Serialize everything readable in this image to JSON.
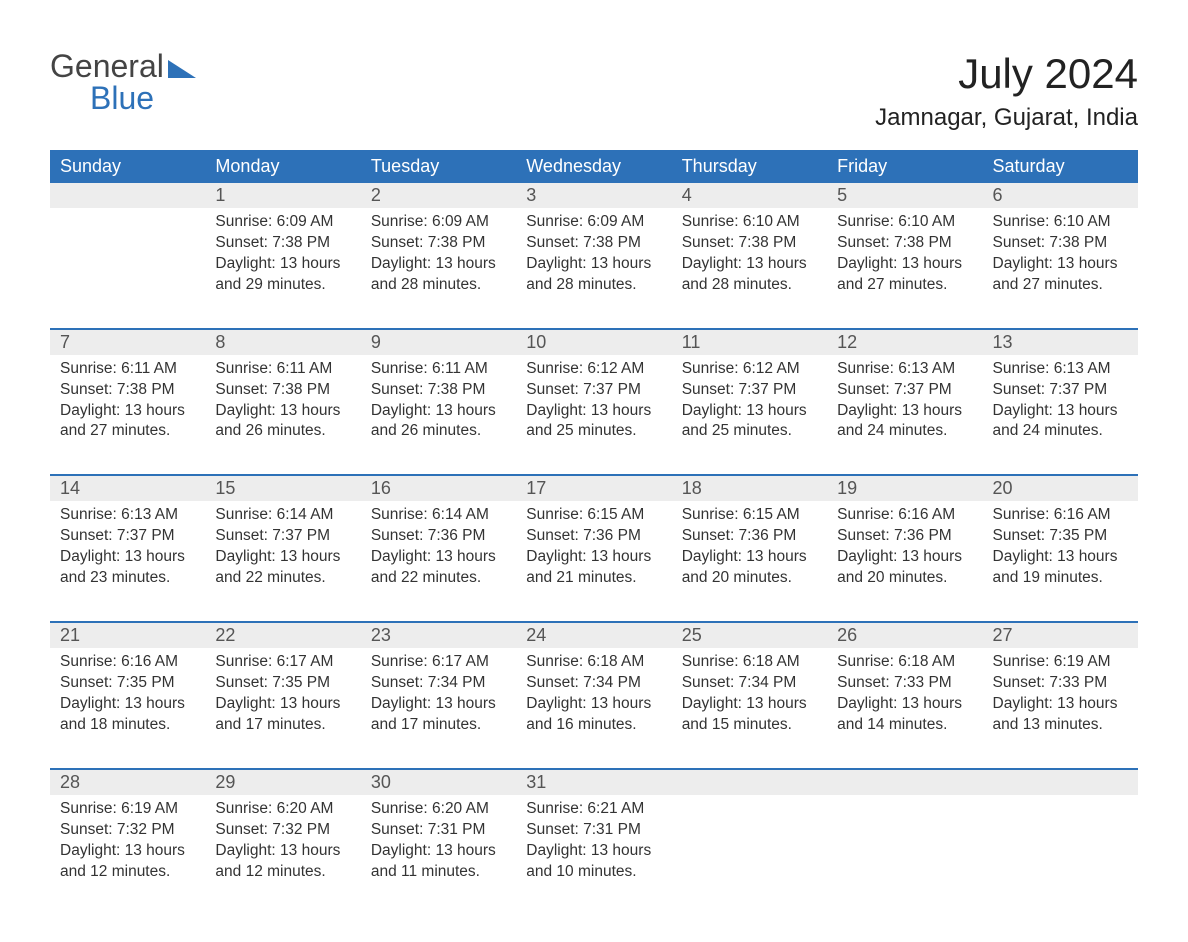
{
  "logo": {
    "line1": "General",
    "line2": "Blue",
    "accent_color": "#2d71b8"
  },
  "title": "July 2024",
  "location": "Jamnagar, Gujarat, India",
  "colors": {
    "header_bg": "#2d71b8",
    "header_text": "#ffffff",
    "daynum_bg": "#ededed",
    "body_text": "#333333",
    "background": "#ffffff"
  },
  "typography": {
    "title_fontsize": 42,
    "location_fontsize": 24,
    "header_fontsize": 18,
    "cell_fontsize": 15.5
  },
  "day_headers": [
    "Sunday",
    "Monday",
    "Tuesday",
    "Wednesday",
    "Thursday",
    "Friday",
    "Saturday"
  ],
  "weeks": [
    [
      {
        "n": "",
        "sr": "",
        "ss": "",
        "dl": ""
      },
      {
        "n": "1",
        "sr": "6:09 AM",
        "ss": "7:38 PM",
        "dl": "13 hours and 29 minutes."
      },
      {
        "n": "2",
        "sr": "6:09 AM",
        "ss": "7:38 PM",
        "dl": "13 hours and 28 minutes."
      },
      {
        "n": "3",
        "sr": "6:09 AM",
        "ss": "7:38 PM",
        "dl": "13 hours and 28 minutes."
      },
      {
        "n": "4",
        "sr": "6:10 AM",
        "ss": "7:38 PM",
        "dl": "13 hours and 28 minutes."
      },
      {
        "n": "5",
        "sr": "6:10 AM",
        "ss": "7:38 PM",
        "dl": "13 hours and 27 minutes."
      },
      {
        "n": "6",
        "sr": "6:10 AM",
        "ss": "7:38 PM",
        "dl": "13 hours and 27 minutes."
      }
    ],
    [
      {
        "n": "7",
        "sr": "6:11 AM",
        "ss": "7:38 PM",
        "dl": "13 hours and 27 minutes."
      },
      {
        "n": "8",
        "sr": "6:11 AM",
        "ss": "7:38 PM",
        "dl": "13 hours and 26 minutes."
      },
      {
        "n": "9",
        "sr": "6:11 AM",
        "ss": "7:38 PM",
        "dl": "13 hours and 26 minutes."
      },
      {
        "n": "10",
        "sr": "6:12 AM",
        "ss": "7:37 PM",
        "dl": "13 hours and 25 minutes."
      },
      {
        "n": "11",
        "sr": "6:12 AM",
        "ss": "7:37 PM",
        "dl": "13 hours and 25 minutes."
      },
      {
        "n": "12",
        "sr": "6:13 AM",
        "ss": "7:37 PM",
        "dl": "13 hours and 24 minutes."
      },
      {
        "n": "13",
        "sr": "6:13 AM",
        "ss": "7:37 PM",
        "dl": "13 hours and 24 minutes."
      }
    ],
    [
      {
        "n": "14",
        "sr": "6:13 AM",
        "ss": "7:37 PM",
        "dl": "13 hours and 23 minutes."
      },
      {
        "n": "15",
        "sr": "6:14 AM",
        "ss": "7:37 PM",
        "dl": "13 hours and 22 minutes."
      },
      {
        "n": "16",
        "sr": "6:14 AM",
        "ss": "7:36 PM",
        "dl": "13 hours and 22 minutes."
      },
      {
        "n": "17",
        "sr": "6:15 AM",
        "ss": "7:36 PM",
        "dl": "13 hours and 21 minutes."
      },
      {
        "n": "18",
        "sr": "6:15 AM",
        "ss": "7:36 PM",
        "dl": "13 hours and 20 minutes."
      },
      {
        "n": "19",
        "sr": "6:16 AM",
        "ss": "7:36 PM",
        "dl": "13 hours and 20 minutes."
      },
      {
        "n": "20",
        "sr": "6:16 AM",
        "ss": "7:35 PM",
        "dl": "13 hours and 19 minutes."
      }
    ],
    [
      {
        "n": "21",
        "sr": "6:16 AM",
        "ss": "7:35 PM",
        "dl": "13 hours and 18 minutes."
      },
      {
        "n": "22",
        "sr": "6:17 AM",
        "ss": "7:35 PM",
        "dl": "13 hours and 17 minutes."
      },
      {
        "n": "23",
        "sr": "6:17 AM",
        "ss": "7:34 PM",
        "dl": "13 hours and 17 minutes."
      },
      {
        "n": "24",
        "sr": "6:18 AM",
        "ss": "7:34 PM",
        "dl": "13 hours and 16 minutes."
      },
      {
        "n": "25",
        "sr": "6:18 AM",
        "ss": "7:34 PM",
        "dl": "13 hours and 15 minutes."
      },
      {
        "n": "26",
        "sr": "6:18 AM",
        "ss": "7:33 PM",
        "dl": "13 hours and 14 minutes."
      },
      {
        "n": "27",
        "sr": "6:19 AM",
        "ss": "7:33 PM",
        "dl": "13 hours and 13 minutes."
      }
    ],
    [
      {
        "n": "28",
        "sr": "6:19 AM",
        "ss": "7:32 PM",
        "dl": "13 hours and 12 minutes."
      },
      {
        "n": "29",
        "sr": "6:20 AM",
        "ss": "7:32 PM",
        "dl": "13 hours and 12 minutes."
      },
      {
        "n": "30",
        "sr": "6:20 AM",
        "ss": "7:31 PM",
        "dl": "13 hours and 11 minutes."
      },
      {
        "n": "31",
        "sr": "6:21 AM",
        "ss": "7:31 PM",
        "dl": "13 hours and 10 minutes."
      },
      {
        "n": "",
        "sr": "",
        "ss": "",
        "dl": ""
      },
      {
        "n": "",
        "sr": "",
        "ss": "",
        "dl": ""
      },
      {
        "n": "",
        "sr": "",
        "ss": "",
        "dl": ""
      }
    ]
  ],
  "labels": {
    "sunrise": "Sunrise: ",
    "sunset": "Sunset: ",
    "daylight": "Daylight: "
  }
}
